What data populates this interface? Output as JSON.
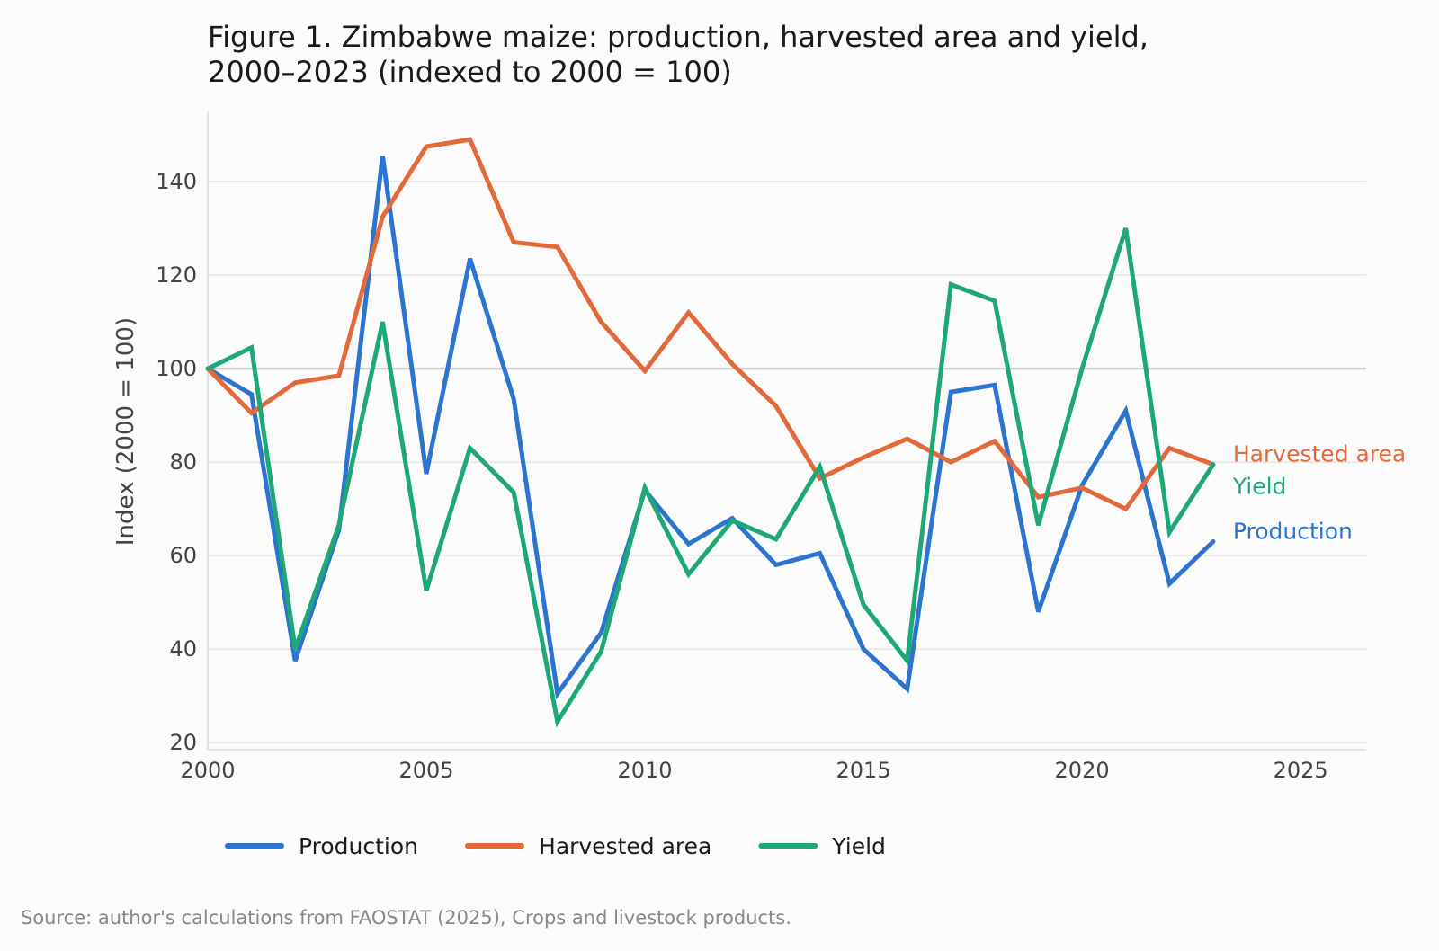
{
  "chart_data": {
    "type": "line",
    "title_lines": [
      "Figure 1. Zimbabwe maize: production, harvested area and yield,",
      "2000–2023 (indexed to 2000 = 100)"
    ],
    "xlabel": "",
    "ylabel": "Index (2000 = 100)",
    "xlim": [
      2000,
      2026.5
    ],
    "ylim": [
      18.5,
      155
    ],
    "x_ticks": [
      2000,
      2005,
      2010,
      2015,
      2020,
      2025
    ],
    "y_ticks": [
      20,
      40,
      60,
      80,
      100,
      120,
      140
    ],
    "reference_line": 100,
    "grid": "horizontal",
    "legend_position": "bottom",
    "x": [
      2000,
      2001,
      2002,
      2003,
      2004,
      2005,
      2006,
      2007,
      2008,
      2009,
      2010,
      2011,
      2012,
      2013,
      2014,
      2015,
      2016,
      2017,
      2018,
      2019,
      2020,
      2021,
      2022,
      2023
    ],
    "series": [
      {
        "name": "Production",
        "color": "#2b74d0",
        "values": [
          100,
          94.5,
          37.5,
          65.5,
          145.5,
          77.5,
          123.5,
          93.5,
          30.5,
          43.5,
          74,
          62.5,
          68,
          58,
          60.5,
          40,
          31.5,
          95,
          96.5,
          48,
          75,
          91,
          54,
          63
        ]
      },
      {
        "name": "Harvested area",
        "color": "#e3683a",
        "values": [
          100,
          90.5,
          97,
          98.5,
          132.5,
          147.5,
          149,
          127,
          126,
          110,
          99.5,
          112,
          101,
          92,
          76.5,
          81,
          85,
          80,
          84.5,
          72.5,
          74.5,
          70,
          83,
          79.5
        ]
      },
      {
        "name": "Yield",
        "color": "#1ea875",
        "values": [
          100,
          104.5,
          40,
          66.5,
          110,
          52.5,
          83,
          73.5,
          24.5,
          39.5,
          74.5,
          56,
          67.5,
          63.5,
          79,
          49.5,
          37.5,
          118,
          114.5,
          66.5,
          100,
          130,
          65,
          79.5
        ]
      }
    ],
    "source": "Source: author's calculations from FAOSTAT (2025), Crops and livestock products."
  }
}
